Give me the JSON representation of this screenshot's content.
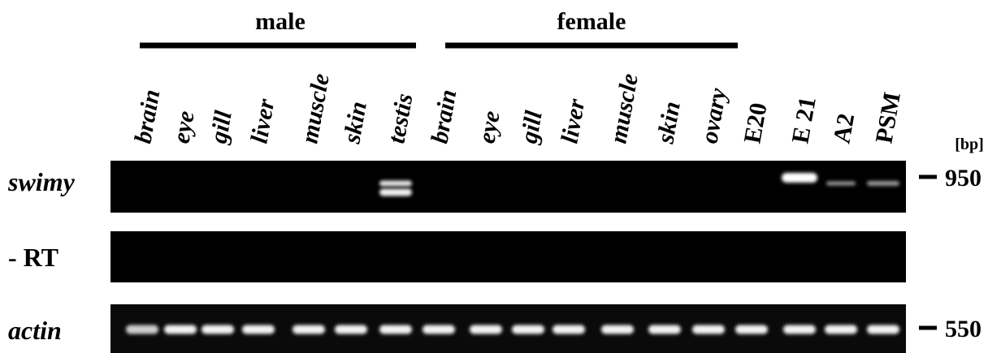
{
  "groups": [
    {
      "label": "male"
    },
    {
      "label": "female"
    }
  ],
  "lanes": [
    "brain",
    "eye",
    "gill",
    "liver",
    "muscle",
    "skin",
    "testis",
    "brain",
    "eye",
    "gill",
    "liver",
    "muscle",
    "skin",
    "ovary",
    "E20",
    "E 21",
    "A2",
    "PSM"
  ],
  "rows": [
    "swimy",
    "- RT",
    "actin"
  ],
  "size_unit": "[bp]",
  "markers": [
    950,
    550
  ]
}
